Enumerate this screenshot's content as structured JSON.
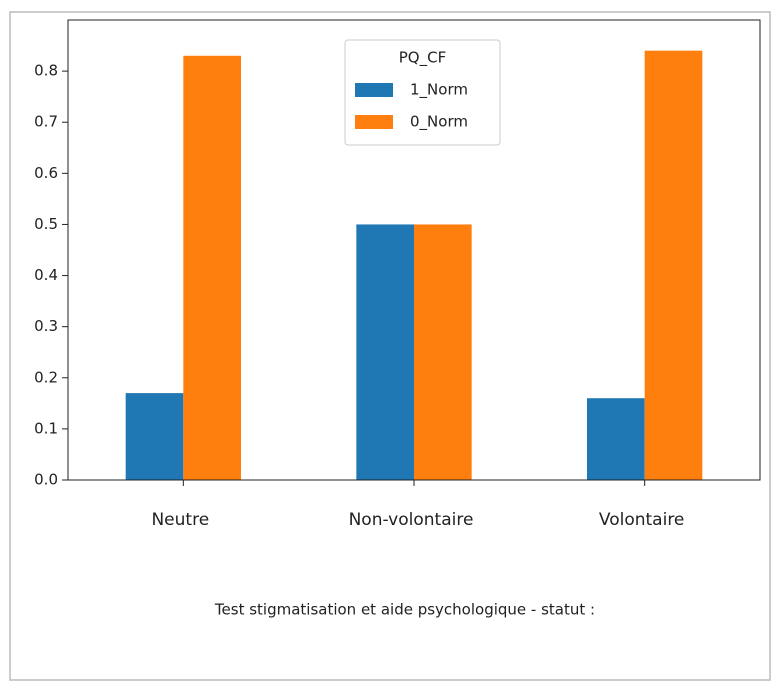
{
  "chart_data": {
    "type": "bar",
    "title": "Test stigmatisation et aide psychologique - statut :",
    "categories": [
      "Neutre",
      "Non-volontaire",
      "Volontaire"
    ],
    "series": [
      {
        "name": "1_Norm",
        "color": "#1f77b4",
        "values": [
          0.17,
          0.5,
          0.16
        ]
      },
      {
        "name": "0_Norm",
        "color": "#ff7f0e",
        "values": [
          0.83,
          0.5,
          0.84
        ]
      }
    ],
    "legend_title": "PQ_CF",
    "legend": "upper center",
    "ylim": [
      0,
      0.9
    ],
    "yticks": [
      {
        "value": 0,
        "label": "0.0"
      },
      0.1,
      0.2,
      0.3,
      0.4,
      0.5,
      0.6,
      0.7,
      0.8
    ],
    "grid": false
  }
}
